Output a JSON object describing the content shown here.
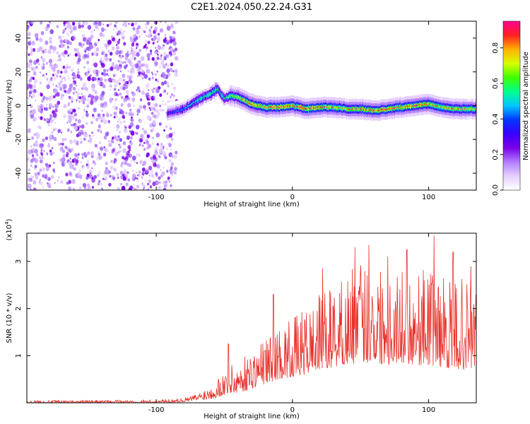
{
  "title": "C2E1.2024.050.22.24.G31",
  "colors": {
    "snr_line": "#e8302a",
    "colormap": [
      "#ffffff",
      "#e6d0ff",
      "#b07cff",
      "#7a00e6",
      "#3a00ff",
      "#0038ff",
      "#00c8ff",
      "#00ff90",
      "#40ff00",
      "#d8ff00",
      "#ffb000",
      "#ff2020",
      "#ff0090"
    ]
  },
  "chart_data": [
    {
      "type": "heatmap",
      "name": "spectrogram",
      "xlabel": "Height of straight line (km)",
      "ylabel": "Frequency (Hz)",
      "xlim": [
        -195,
        135
      ],
      "ylim": [
        -50,
        50
      ],
      "xticks": [
        -100,
        0,
        100
      ],
      "xtick_labels": [
        "-100",
        "0",
        "100"
      ],
      "yticks": [
        -40,
        -20,
        0,
        20,
        40
      ],
      "ytick_labels": [
        "-40",
        "-20",
        "0",
        "20",
        "40"
      ],
      "colorbar": {
        "label": "Normalized spectral amplitude",
        "range": [
          0,
          0.95
        ],
        "ticks": [
          0.0,
          0.2,
          0.4,
          0.6,
          0.8
        ],
        "tick_labels": [
          "0.0",
          "0.2",
          "0.4",
          "0.6",
          "0.8"
        ]
      },
      "noise_region_x": [
        -195,
        -85
      ],
      "signal_track": {
        "x": [
          -92,
          -80,
          -70,
          -60,
          -55,
          -50,
          -45,
          -40,
          -35,
          -30,
          -25,
          -20,
          -10,
          0,
          10,
          20,
          30,
          40,
          50,
          60,
          70,
          80,
          90,
          100,
          110,
          120,
          135
        ],
        "freq": [
          -5,
          -2,
          3,
          7,
          10,
          4,
          6,
          5,
          3,
          1,
          0,
          -1,
          -1,
          0,
          -2,
          -1,
          -1,
          -2,
          -2,
          -3,
          -2,
          -1,
          0,
          1,
          -1,
          -2,
          -2
        ],
        "amplitude": [
          0.3,
          0.45,
          0.55,
          0.6,
          0.6,
          0.55,
          0.65,
          0.7,
          0.8,
          0.85,
          0.75,
          0.8,
          0.85,
          0.8,
          0.85,
          0.85,
          0.8,
          0.75,
          0.85,
          0.8,
          0.85,
          0.8,
          0.85,
          0.8,
          0.75,
          0.8,
          0.7
        ]
      }
    },
    {
      "type": "line",
      "name": "snr",
      "xlabel": "Height of straight line (km)",
      "ylabel": "SNR (10 * v/v)",
      "yscale_label": "(x10",
      "yscale_exp": "4",
      "yscale_close": ")",
      "xlim": [
        -195,
        135
      ],
      "ylim": [
        0,
        3.6
      ],
      "xticks": [
        -100,
        0,
        100
      ],
      "xtick_labels": [
        "-100",
        "0",
        "100"
      ],
      "yticks": [
        1,
        2,
        3
      ],
      "ytick_labels": [
        "1",
        "2",
        "3"
      ],
      "envelope": {
        "x": [
          -195,
          -100,
          -80,
          -70,
          -60,
          -50,
          -40,
          -30,
          -20,
          -10,
          0,
          10,
          20,
          30,
          40,
          50,
          60,
          70,
          80,
          90,
          100,
          110,
          120,
          135
        ],
        "lower": [
          0.0,
          0.0,
          0.02,
          0.05,
          0.08,
          0.15,
          0.2,
          0.3,
          0.4,
          0.5,
          0.55,
          0.6,
          0.7,
          0.75,
          0.8,
          0.85,
          0.85,
          0.8,
          0.85,
          0.8,
          0.8,
          0.75,
          0.7,
          0.7
        ],
        "upper": [
          0.05,
          0.06,
          0.1,
          0.2,
          0.4,
          0.7,
          0.9,
          1.1,
          1.4,
          1.6,
          1.8,
          2.0,
          2.3,
          2.5,
          2.8,
          3.0,
          3.0,
          2.9,
          2.8,
          2.8,
          2.9,
          2.7,
          2.7,
          2.5
        ]
      },
      "peaks": [
        {
          "x": -47,
          "y": 1.25
        },
        {
          "x": -14,
          "y": 2.3
        },
        {
          "x": 22,
          "y": 2.85
        },
        {
          "x": 46,
          "y": 3.3
        },
        {
          "x": 56,
          "y": 3.35
        },
        {
          "x": 70,
          "y": 3.1
        },
        {
          "x": 84,
          "y": 3.25
        },
        {
          "x": 104,
          "y": 3.55
        },
        {
          "x": 118,
          "y": 3.2
        },
        {
          "x": 131,
          "y": 2.9
        }
      ]
    }
  ]
}
